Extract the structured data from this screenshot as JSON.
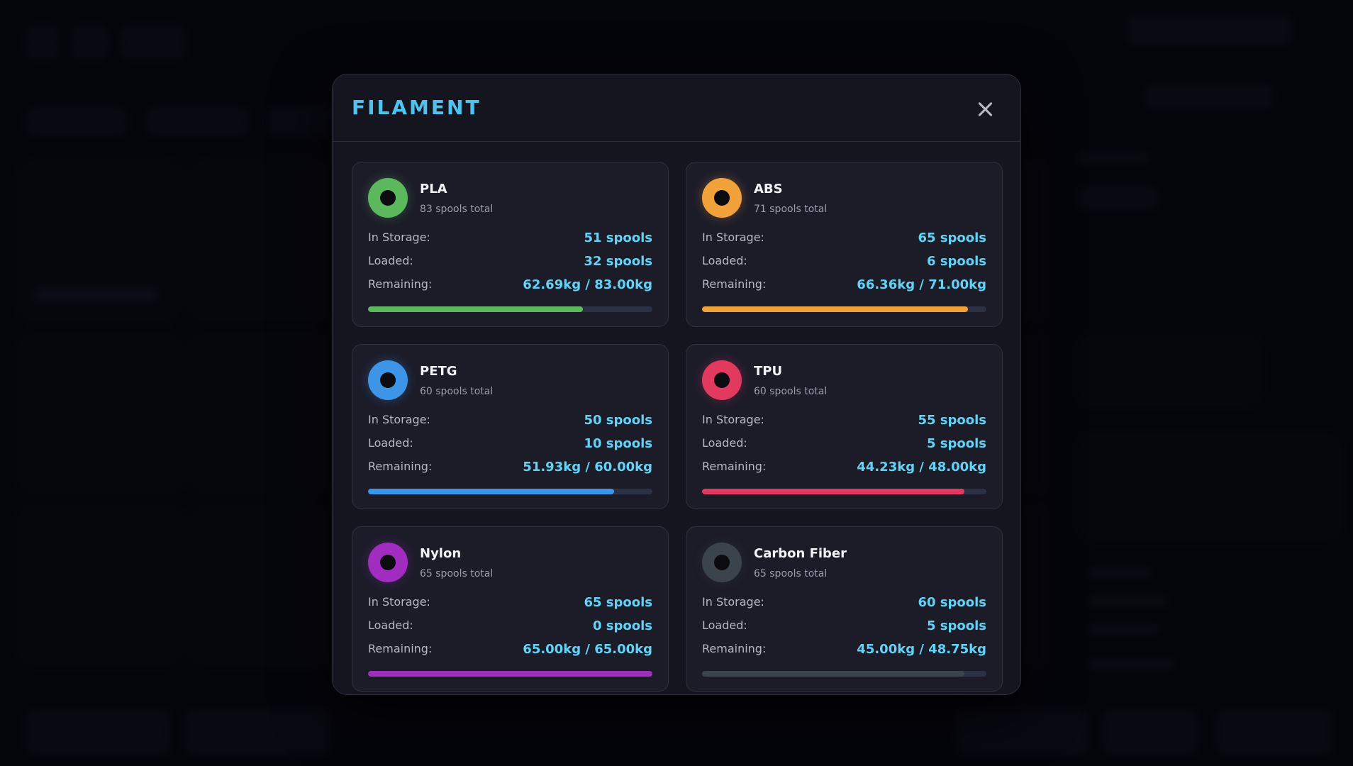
{
  "modal": {
    "title": "FILAMENT"
  },
  "labels": {
    "in_storage": "In Storage:",
    "loaded": "Loaded:",
    "remaining": "Remaining:"
  },
  "materials": [
    {
      "name": "PLA",
      "total": "83 spools total",
      "in_storage": "51 spools",
      "loaded": "32 spools",
      "remaining": "62.69kg / 83.00kg",
      "remaining_fraction": 0.7553,
      "color": "#5cb85c",
      "icon": "spool-icon"
    },
    {
      "name": "ABS",
      "total": "71 spools total",
      "in_storage": "65 spools",
      "loaded": "6 spools",
      "remaining": "66.36kg / 71.00kg",
      "remaining_fraction": 0.9346,
      "color": "#f2a23a",
      "icon": "spool-icon"
    },
    {
      "name": "PETG",
      "total": "60 spools total",
      "in_storage": "50 spools",
      "loaded": "10 spools",
      "remaining": "51.93kg / 60.00kg",
      "remaining_fraction": 0.8655,
      "color": "#3d95e8",
      "icon": "spool-icon"
    },
    {
      "name": "TPU",
      "total": "60 spools total",
      "in_storage": "55 spools",
      "loaded": "5 spools",
      "remaining": "44.23kg / 48.00kg",
      "remaining_fraction": 0.9215,
      "color": "#e23a5f",
      "icon": "spool-icon"
    },
    {
      "name": "Nylon",
      "total": "65 spools total",
      "in_storage": "65 spools",
      "loaded": "0 spools",
      "remaining": "65.00kg / 65.00kg",
      "remaining_fraction": 1.0,
      "color": "#a02dbf",
      "icon": "spool-icon"
    },
    {
      "name": "Carbon Fiber",
      "total": "65 spools total",
      "in_storage": "60 spools",
      "loaded": "5 spools",
      "remaining": "45.00kg / 48.75kg",
      "remaining_fraction": 0.9231,
      "color": "#3b434c",
      "icon": "spool-icon"
    }
  ]
}
